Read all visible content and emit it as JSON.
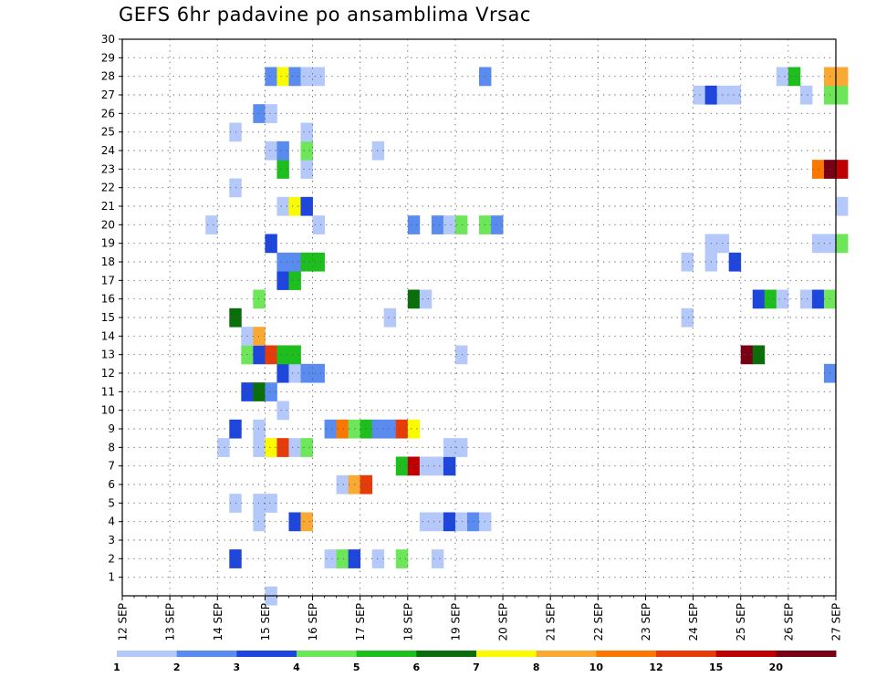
{
  "chart_data": {
    "type": "heatmap",
    "title": "GEFS 6hr padavine po ansamblima Vrsac",
    "xlabel": "",
    "ylabel": "",
    "x_unit": "6h steps from 12 SEP 00Z",
    "x_tick_labels": [
      "12 SEP",
      "13 SEP",
      "14 SEP",
      "15 SEP",
      "16 SEP",
      "17 SEP",
      "18 SEP",
      "19 SEP",
      "20 SEP",
      "21 SEP",
      "22 SEP",
      "23 SEP",
      "24 SEP",
      "25 SEP",
      "26 SEP",
      "27 SEP"
    ],
    "y_tick_labels": [
      "1",
      "2",
      "3",
      "4",
      "5",
      "6",
      "7",
      "8",
      "9",
      "10",
      "11",
      "12",
      "13",
      "14",
      "15",
      "16",
      "17",
      "18",
      "19",
      "20",
      "21",
      "22",
      "23",
      "24",
      "25",
      "26",
      "27",
      "28",
      "29",
      "30"
    ],
    "ylim": [
      0,
      30
    ],
    "grid": true,
    "colorbar": {
      "colors": [
        "#b4c8fa",
        "#5a8cf0",
        "#1e46dc",
        "#6ee65a",
        "#1ebe1e",
        "#0a6e0a",
        "#fafa00",
        "#faaa32",
        "#fa7800",
        "#e63c0a",
        "#be0000",
        "#780014"
      ],
      "labels": [
        "1",
        "2",
        "3",
        "4",
        "5",
        "6",
        "7",
        "8",
        "10",
        "12",
        "15",
        "20"
      ],
      "placement": "bottom"
    },
    "cells": [
      {
        "x": 12,
        "y": 0,
        "v": 1
      },
      {
        "x": 9,
        "y": 2,
        "v": 3
      },
      {
        "x": 17,
        "y": 2,
        "v": 1
      },
      {
        "x": 18,
        "y": 2,
        "v": 4
      },
      {
        "x": 19,
        "y": 2,
        "v": 3
      },
      {
        "x": 21,
        "y": 2,
        "v": 1
      },
      {
        "x": 23,
        "y": 2,
        "v": 4
      },
      {
        "x": 26,
        "y": 2,
        "v": 1
      },
      {
        "x": 11,
        "y": 4,
        "v": 1
      },
      {
        "x": 14,
        "y": 4,
        "v": 3
      },
      {
        "x": 15,
        "y": 4,
        "v": 8
      },
      {
        "x": 25,
        "y": 4,
        "v": 1
      },
      {
        "x": 26,
        "y": 4,
        "v": 1
      },
      {
        "x": 27,
        "y": 4,
        "v": 3
      },
      {
        "x": 28,
        "y": 4,
        "v": 1
      },
      {
        "x": 29,
        "y": 4,
        "v": 2
      },
      {
        "x": 30,
        "y": 4,
        "v": 1
      },
      {
        "x": 9,
        "y": 5,
        "v": 1
      },
      {
        "x": 11,
        "y": 5,
        "v": 1
      },
      {
        "x": 12,
        "y": 5,
        "v": 1
      },
      {
        "x": 18,
        "y": 6,
        "v": 1
      },
      {
        "x": 19,
        "y": 6,
        "v": 8
      },
      {
        "x": 20,
        "y": 6,
        "v": 12
      },
      {
        "x": 23,
        "y": 7,
        "v": 5
      },
      {
        "x": 24,
        "y": 7,
        "v": 15
      },
      {
        "x": 25,
        "y": 7,
        "v": 1
      },
      {
        "x": 26,
        "y": 7,
        "v": 1
      },
      {
        "x": 27,
        "y": 7,
        "v": 3
      },
      {
        "x": 8,
        "y": 8,
        "v": 1
      },
      {
        "x": 11,
        "y": 8,
        "v": 1
      },
      {
        "x": 12,
        "y": 8,
        "v": 7
      },
      {
        "x": 13,
        "y": 8,
        "v": 12
      },
      {
        "x": 14,
        "y": 8,
        "v": 1
      },
      {
        "x": 15,
        "y": 8,
        "v": 4
      },
      {
        "x": 27,
        "y": 8,
        "v": 1
      },
      {
        "x": 28,
        "y": 8,
        "v": 1
      },
      {
        "x": 9,
        "y": 9,
        "v": 3
      },
      {
        "x": 11,
        "y": 9,
        "v": 1
      },
      {
        "x": 17,
        "y": 9,
        "v": 2
      },
      {
        "x": 18,
        "y": 9,
        "v": 10
      },
      {
        "x": 19,
        "y": 9,
        "v": 4
      },
      {
        "x": 20,
        "y": 9,
        "v": 5
      },
      {
        "x": 21,
        "y": 9,
        "v": 2
      },
      {
        "x": 22,
        "y": 9,
        "v": 2
      },
      {
        "x": 23,
        "y": 9,
        "v": 12
      },
      {
        "x": 24,
        "y": 9,
        "v": 7
      },
      {
        "x": 13,
        "y": 10,
        "v": 1
      },
      {
        "x": 10,
        "y": 11,
        "v": 3
      },
      {
        "x": 11,
        "y": 11,
        "v": 6
      },
      {
        "x": 12,
        "y": 11,
        "v": 2
      },
      {
        "x": 13,
        "y": 12,
        "v": 3
      },
      {
        "x": 14,
        "y": 12,
        "v": 1
      },
      {
        "x": 15,
        "y": 12,
        "v": 2
      },
      {
        "x": 16,
        "y": 12,
        "v": 2
      },
      {
        "x": 59,
        "y": 12,
        "v": 2
      },
      {
        "x": 10,
        "y": 13,
        "v": 4
      },
      {
        "x": 11,
        "y": 13,
        "v": 3
      },
      {
        "x": 12,
        "y": 13,
        "v": 12
      },
      {
        "x": 13,
        "y": 13,
        "v": 5
      },
      {
        "x": 14,
        "y": 13,
        "v": 5
      },
      {
        "x": 28,
        "y": 13,
        "v": 1
      },
      {
        "x": 52,
        "y": 13,
        "v": 20
      },
      {
        "x": 53,
        "y": 13,
        "v": 6
      },
      {
        "x": 10,
        "y": 14,
        "v": 1
      },
      {
        "x": 11,
        "y": 14,
        "v": 8
      },
      {
        "x": 9,
        "y": 15,
        "v": 6
      },
      {
        "x": 22,
        "y": 15,
        "v": 1
      },
      {
        "x": 47,
        "y": 15,
        "v": 1
      },
      {
        "x": 11,
        "y": 16,
        "v": 4
      },
      {
        "x": 24,
        "y": 16,
        "v": 6
      },
      {
        "x": 25,
        "y": 16,
        "v": 1
      },
      {
        "x": 53,
        "y": 16,
        "v": 3
      },
      {
        "x": 54,
        "y": 16,
        "v": 5
      },
      {
        "x": 55,
        "y": 16,
        "v": 1
      },
      {
        "x": 57,
        "y": 16,
        "v": 1
      },
      {
        "x": 58,
        "y": 16,
        "v": 3
      },
      {
        "x": 59,
        "y": 16,
        "v": 4
      },
      {
        "x": 13,
        "y": 17,
        "v": 3
      },
      {
        "x": 14,
        "y": 17,
        "v": 5
      },
      {
        "x": 13,
        "y": 18,
        "v": 2
      },
      {
        "x": 14,
        "y": 18,
        "v": 2
      },
      {
        "x": 15,
        "y": 18,
        "v": 5
      },
      {
        "x": 16,
        "y": 18,
        "v": 5
      },
      {
        "x": 47,
        "y": 18,
        "v": 1
      },
      {
        "x": 49,
        "y": 18,
        "v": 1
      },
      {
        "x": 51,
        "y": 18,
        "v": 3
      },
      {
        "x": 12,
        "y": 19,
        "v": 3
      },
      {
        "x": 49,
        "y": 19,
        "v": 1
      },
      {
        "x": 50,
        "y": 19,
        "v": 1
      },
      {
        "x": 58,
        "y": 19,
        "v": 1
      },
      {
        "x": 59,
        "y": 19,
        "v": 1
      },
      {
        "x": 60,
        "y": 19,
        "v": 4
      },
      {
        "x": 7,
        "y": 20,
        "v": 1
      },
      {
        "x": 16,
        "y": 20,
        "v": 1
      },
      {
        "x": 24,
        "y": 20,
        "v": 2
      },
      {
        "x": 26,
        "y": 20,
        "v": 2
      },
      {
        "x": 27,
        "y": 20,
        "v": 1
      },
      {
        "x": 28,
        "y": 20,
        "v": 4
      },
      {
        "x": 30,
        "y": 20,
        "v": 4
      },
      {
        "x": 31,
        "y": 20,
        "v": 2
      },
      {
        "x": 13,
        "y": 21,
        "v": 1
      },
      {
        "x": 14,
        "y": 21,
        "v": 7
      },
      {
        "x": 15,
        "y": 21,
        "v": 3
      },
      {
        "x": 60,
        "y": 21,
        "v": 1
      },
      {
        "x": 9,
        "y": 22,
        "v": 1
      },
      {
        "x": 13,
        "y": 23,
        "v": 5
      },
      {
        "x": 15,
        "y": 23,
        "v": 1
      },
      {
        "x": 58,
        "y": 23,
        "v": 10
      },
      {
        "x": 59,
        "y": 23,
        "v": 20
      },
      {
        "x": 60,
        "y": 23,
        "v": 15
      },
      {
        "x": 12,
        "y": 24,
        "v": 1
      },
      {
        "x": 13,
        "y": 24,
        "v": 2
      },
      {
        "x": 15,
        "y": 24,
        "v": 4
      },
      {
        "x": 21,
        "y": 24,
        "v": 1
      },
      {
        "x": 9,
        "y": 25,
        "v": 1
      },
      {
        "x": 15,
        "y": 25,
        "v": 1
      },
      {
        "x": 11,
        "y": 26,
        "v": 2
      },
      {
        "x": 12,
        "y": 26,
        "v": 1
      },
      {
        "x": 48,
        "y": 27,
        "v": 1
      },
      {
        "x": 49,
        "y": 27,
        "v": 3
      },
      {
        "x": 50,
        "y": 27,
        "v": 1
      },
      {
        "x": 51,
        "y": 27,
        "v": 1
      },
      {
        "x": 57,
        "y": 27,
        "v": 1
      },
      {
        "x": 59,
        "y": 27,
        "v": 4
      },
      {
        "x": 60,
        "y": 27,
        "v": 4
      },
      {
        "x": 12,
        "y": 28,
        "v": 2
      },
      {
        "x": 13,
        "y": 28,
        "v": 7
      },
      {
        "x": 14,
        "y": 28,
        "v": 2
      },
      {
        "x": 15,
        "y": 28,
        "v": 1
      },
      {
        "x": 16,
        "y": 28,
        "v": 1
      },
      {
        "x": 30,
        "y": 28,
        "v": 2
      },
      {
        "x": 55,
        "y": 28,
        "v": 1
      },
      {
        "x": 56,
        "y": 28,
        "v": 5
      },
      {
        "x": 59,
        "y": 28,
        "v": 8
      },
      {
        "x": 60,
        "y": 28,
        "v": 8
      }
    ]
  }
}
